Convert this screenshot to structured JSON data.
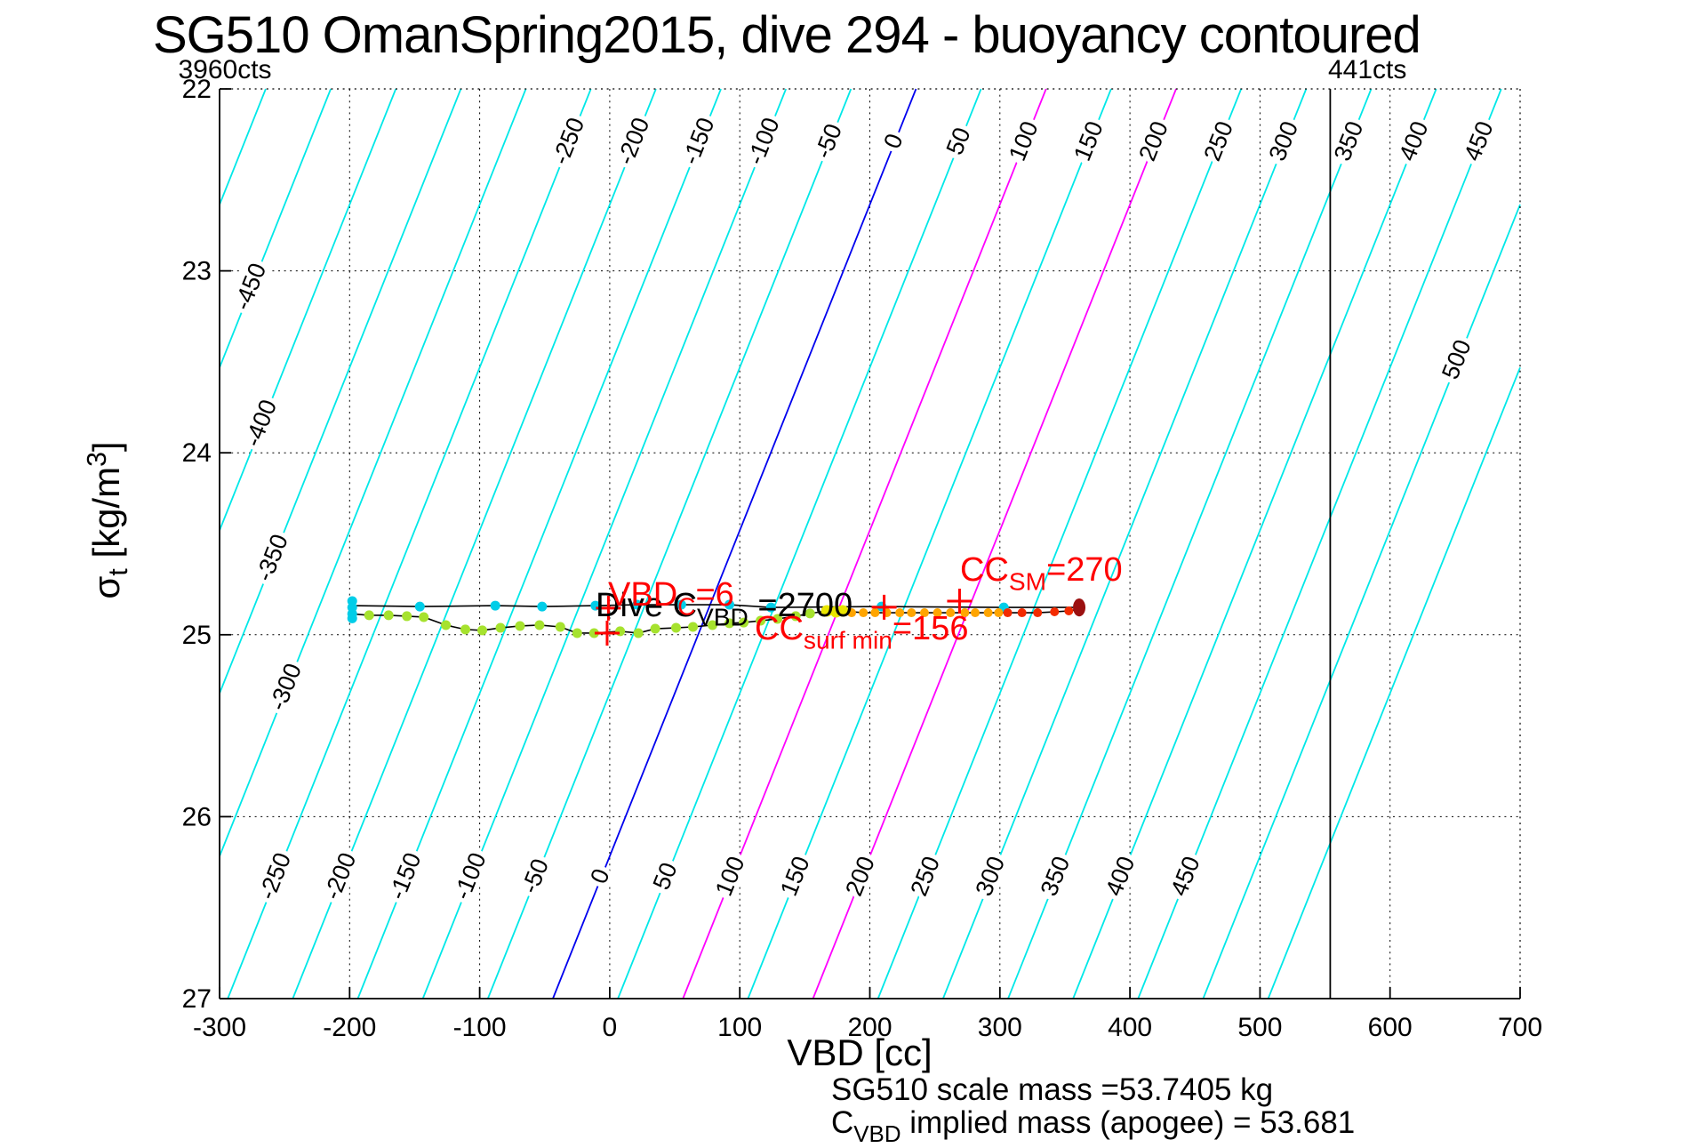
{
  "title": "SG510 OmanSpring2015, dive 294 - buoyancy contoured",
  "labels": {
    "top_left_counts": "3960cts",
    "top_right_counts": "441cts"
  },
  "axes": {
    "x": {
      "label": "VBD [cc]"
    },
    "y": {
      "symbol": "σ",
      "symbol_sub": "t",
      "unit_pre": " [kg/m",
      "unit_sup": "3",
      "unit_post": "]"
    }
  },
  "annotations": {
    "dive_cvbd": {
      "pre": "Dive C",
      "sub": "VBD",
      "post": " =2700"
    },
    "vbd_c": {
      "pre": "VBD",
      "sub": "C",
      "post": "=6"
    },
    "cc_sm": {
      "pre": "CC",
      "sub": "SM",
      "post": "=270"
    },
    "cc_surf_min": {
      "pre": "CC",
      "sub": "surf min",
      "post": "=156"
    }
  },
  "footer": {
    "line1": "SG510 scale mass =53.7405 kg",
    "line2": {
      "pre": "C",
      "sub": "VBD",
      "post": " implied mass (apogee) = 53.681"
    }
  },
  "chart_data": {
    "type": "scatter",
    "title": "SG510 OmanSpring2015, dive 294 - buoyancy contoured",
    "xlabel": "VBD [cc]",
    "ylabel": "sigma_t [kg/m^3]",
    "xlim": [
      -300,
      700
    ],
    "ylim": [
      22,
      27
    ],
    "y_axis_reversed": true,
    "xticks": [
      -300,
      -200,
      -100,
      0,
      100,
      200,
      300,
      400,
      500,
      600,
      700
    ],
    "yticks": [
      22,
      23,
      24,
      25,
      26,
      27
    ],
    "grid": "dotted",
    "contours": {
      "values": [
        -500,
        -450,
        -400,
        -350,
        -300,
        -250,
        -200,
        -150,
        -100,
        -50,
        0,
        50,
        100,
        150,
        200,
        250,
        300,
        350,
        400,
        450,
        500,
        550
      ],
      "vbd_of_zero_contour_at_sigma27": -43.7,
      "dvbd_dsigma": -55.84,
      "color_default": "#00e8e8",
      "color_zero": "#0000ee",
      "magenta_values": [
        100,
        200
      ],
      "color_magenta": "#ff00ff",
      "label_rotation_deg": -68,
      "label_bands": {
        "top_sigma": 22.29,
        "top_values": [
          -250,
          -200,
          -150,
          -100,
          -50,
          0,
          50,
          100,
          150,
          200,
          250,
          300,
          350,
          400,
          450
        ],
        "bottom_sigma": 26.33,
        "bottom_values": [
          -250,
          -200,
          -150,
          -100,
          -50,
          0,
          50,
          100,
          150,
          200,
          250,
          300,
          350,
          400,
          450
        ],
        "left": [
          {
            "value": -450,
            "sigma": 23.09
          },
          {
            "value": -400,
            "sigma": 23.84
          },
          {
            "value": -350,
            "sigma": 24.58
          },
          {
            "value": -300,
            "sigma": 25.29
          }
        ],
        "right": [
          {
            "value": 500,
            "sigma": 23.49
          }
        ]
      }
    },
    "vbd_max_line": {
      "vbd": 554,
      "color": "#000000"
    },
    "track_lines": [
      {
        "name": "dive-track",
        "color": "#000000",
        "points": [
          [
            -198,
            24.84
          ],
          [
            -146,
            24.845
          ],
          [
            -88,
            24.84
          ],
          [
            -52,
            24.845
          ],
          [
            -11,
            24.84
          ],
          [
            21,
            24.835
          ],
          [
            55,
            24.835
          ],
          [
            92,
            24.835
          ],
          [
            124,
            24.85
          ],
          [
            209,
            24.845
          ],
          [
            303,
            24.85
          ],
          [
            361,
            24.85
          ]
        ]
      },
      {
        "name": "climb-track",
        "color": "#000000",
        "points": [
          [
            -198,
            24.885
          ],
          [
            -185,
            24.893
          ],
          [
            -170,
            24.893
          ],
          [
            -156,
            24.898
          ],
          [
            -143,
            24.903
          ],
          [
            -126,
            24.947
          ],
          [
            -111,
            24.971
          ],
          [
            -98,
            24.976
          ],
          [
            -84,
            24.962
          ],
          [
            -69,
            24.952
          ],
          [
            -54,
            24.947
          ],
          [
            -38,
            24.957
          ],
          [
            -25,
            24.991
          ],
          [
            -12,
            24.991
          ],
          [
            8,
            24.981
          ],
          [
            22,
            24.991
          ],
          [
            35,
            24.967
          ],
          [
            51,
            24.962
          ],
          [
            64,
            24.957
          ],
          [
            79,
            24.947
          ],
          [
            92,
            24.937
          ],
          [
            103,
            24.933
          ],
          [
            116,
            24.923
          ],
          [
            129,
            24.913
          ],
          [
            143,
            24.898
          ],
          [
            154,
            24.883
          ],
          [
            167,
            24.869
          ],
          [
            179,
            24.869
          ],
          [
            195,
            24.879
          ],
          [
            213,
            24.879
          ],
          [
            232,
            24.879
          ],
          [
            252,
            24.879
          ],
          [
            273,
            24.879
          ],
          [
            291,
            24.879
          ],
          [
            306,
            24.879
          ],
          [
            317,
            24.879
          ],
          [
            329,
            24.879
          ],
          [
            342,
            24.874
          ],
          [
            353,
            24.869
          ],
          [
            361,
            24.86
          ]
        ]
      }
    ],
    "series": [
      {
        "name": "dive-start-cluster",
        "color": "#00cde8",
        "marker": "circle",
        "size": 11,
        "points": [
          [
            -198,
            24.815
          ],
          [
            -198,
            24.85
          ],
          [
            -198,
            24.885
          ],
          [
            -198,
            24.91
          ]
        ]
      },
      {
        "name": "dive-samples",
        "color": "#00cde8",
        "marker": "circle",
        "size": 11,
        "points": [
          [
            -146,
            24.845
          ],
          [
            -88,
            24.84
          ],
          [
            -52,
            24.845
          ],
          [
            -11,
            24.84
          ],
          [
            21,
            24.835
          ],
          [
            55,
            24.835
          ],
          [
            92,
            24.835
          ],
          [
            124,
            24.85
          ],
          [
            209,
            24.845
          ],
          [
            303,
            24.85
          ]
        ]
      },
      {
        "name": "climb-samples",
        "color": "#a6e22e",
        "marker": "circle",
        "size": 11,
        "points": [
          [
            -185,
            24.893
          ],
          [
            -170,
            24.893
          ],
          [
            -156,
            24.898
          ],
          [
            -143,
            24.903
          ],
          [
            -126,
            24.947
          ],
          [
            -111,
            24.971
          ],
          [
            -98,
            24.976
          ],
          [
            -84,
            24.962
          ],
          [
            -69,
            24.952
          ],
          [
            -54,
            24.947
          ],
          [
            -38,
            24.957
          ],
          [
            -25,
            24.991
          ],
          [
            -12,
            24.991
          ],
          [
            8,
            24.981
          ],
          [
            22,
            24.991
          ],
          [
            35,
            24.967
          ],
          [
            51,
            24.962
          ],
          [
            64,
            24.957
          ],
          [
            79,
            24.947
          ],
          [
            92,
            24.937
          ],
          [
            103,
            24.933
          ],
          [
            116,
            24.923
          ],
          [
            129,
            24.913
          ],
          [
            143,
            24.898
          ],
          [
            154,
            24.883
          ]
        ]
      },
      {
        "name": "neutral-samples",
        "color": "#eae600",
        "marker": "circle",
        "size": 13,
        "points": [
          [
            167,
            24.869
          ],
          [
            174,
            24.874
          ],
          [
            179,
            24.869
          ]
        ]
      },
      {
        "name": "climb-shallow-samples",
        "color": "#ffa500",
        "marker": "circle",
        "size": 10,
        "points": [
          [
            186,
            24.879
          ],
          [
            195,
            24.879
          ],
          [
            204,
            24.879
          ],
          [
            213,
            24.879
          ],
          [
            223,
            24.879
          ],
          [
            232,
            24.879
          ],
          [
            242,
            24.879
          ],
          [
            252,
            24.879
          ],
          [
            262,
            24.879
          ],
          [
            273,
            24.879
          ],
          [
            281,
            24.879
          ],
          [
            291,
            24.879
          ],
          [
            299,
            24.879
          ]
        ]
      },
      {
        "name": "surface-samples",
        "color": "#f32b00",
        "marker": "circle",
        "size": 10,
        "points": [
          [
            306,
            24.879
          ],
          [
            317,
            24.879
          ],
          [
            329,
            24.879
          ],
          [
            342,
            24.874
          ],
          [
            353,
            24.869
          ]
        ]
      },
      {
        "name": "end-marker",
        "color": "#9b1010",
        "marker": "ellipse",
        "size": 14,
        "points": [
          [
            361,
            24.85
          ]
        ]
      }
    ],
    "plus_markers": {
      "color": "#ff0000",
      "points": [
        [
          -1,
          24.854
        ],
        [
          -2,
          24.991
        ],
        [
          211,
          24.849
        ],
        [
          269,
          24.815
        ]
      ]
    }
  }
}
